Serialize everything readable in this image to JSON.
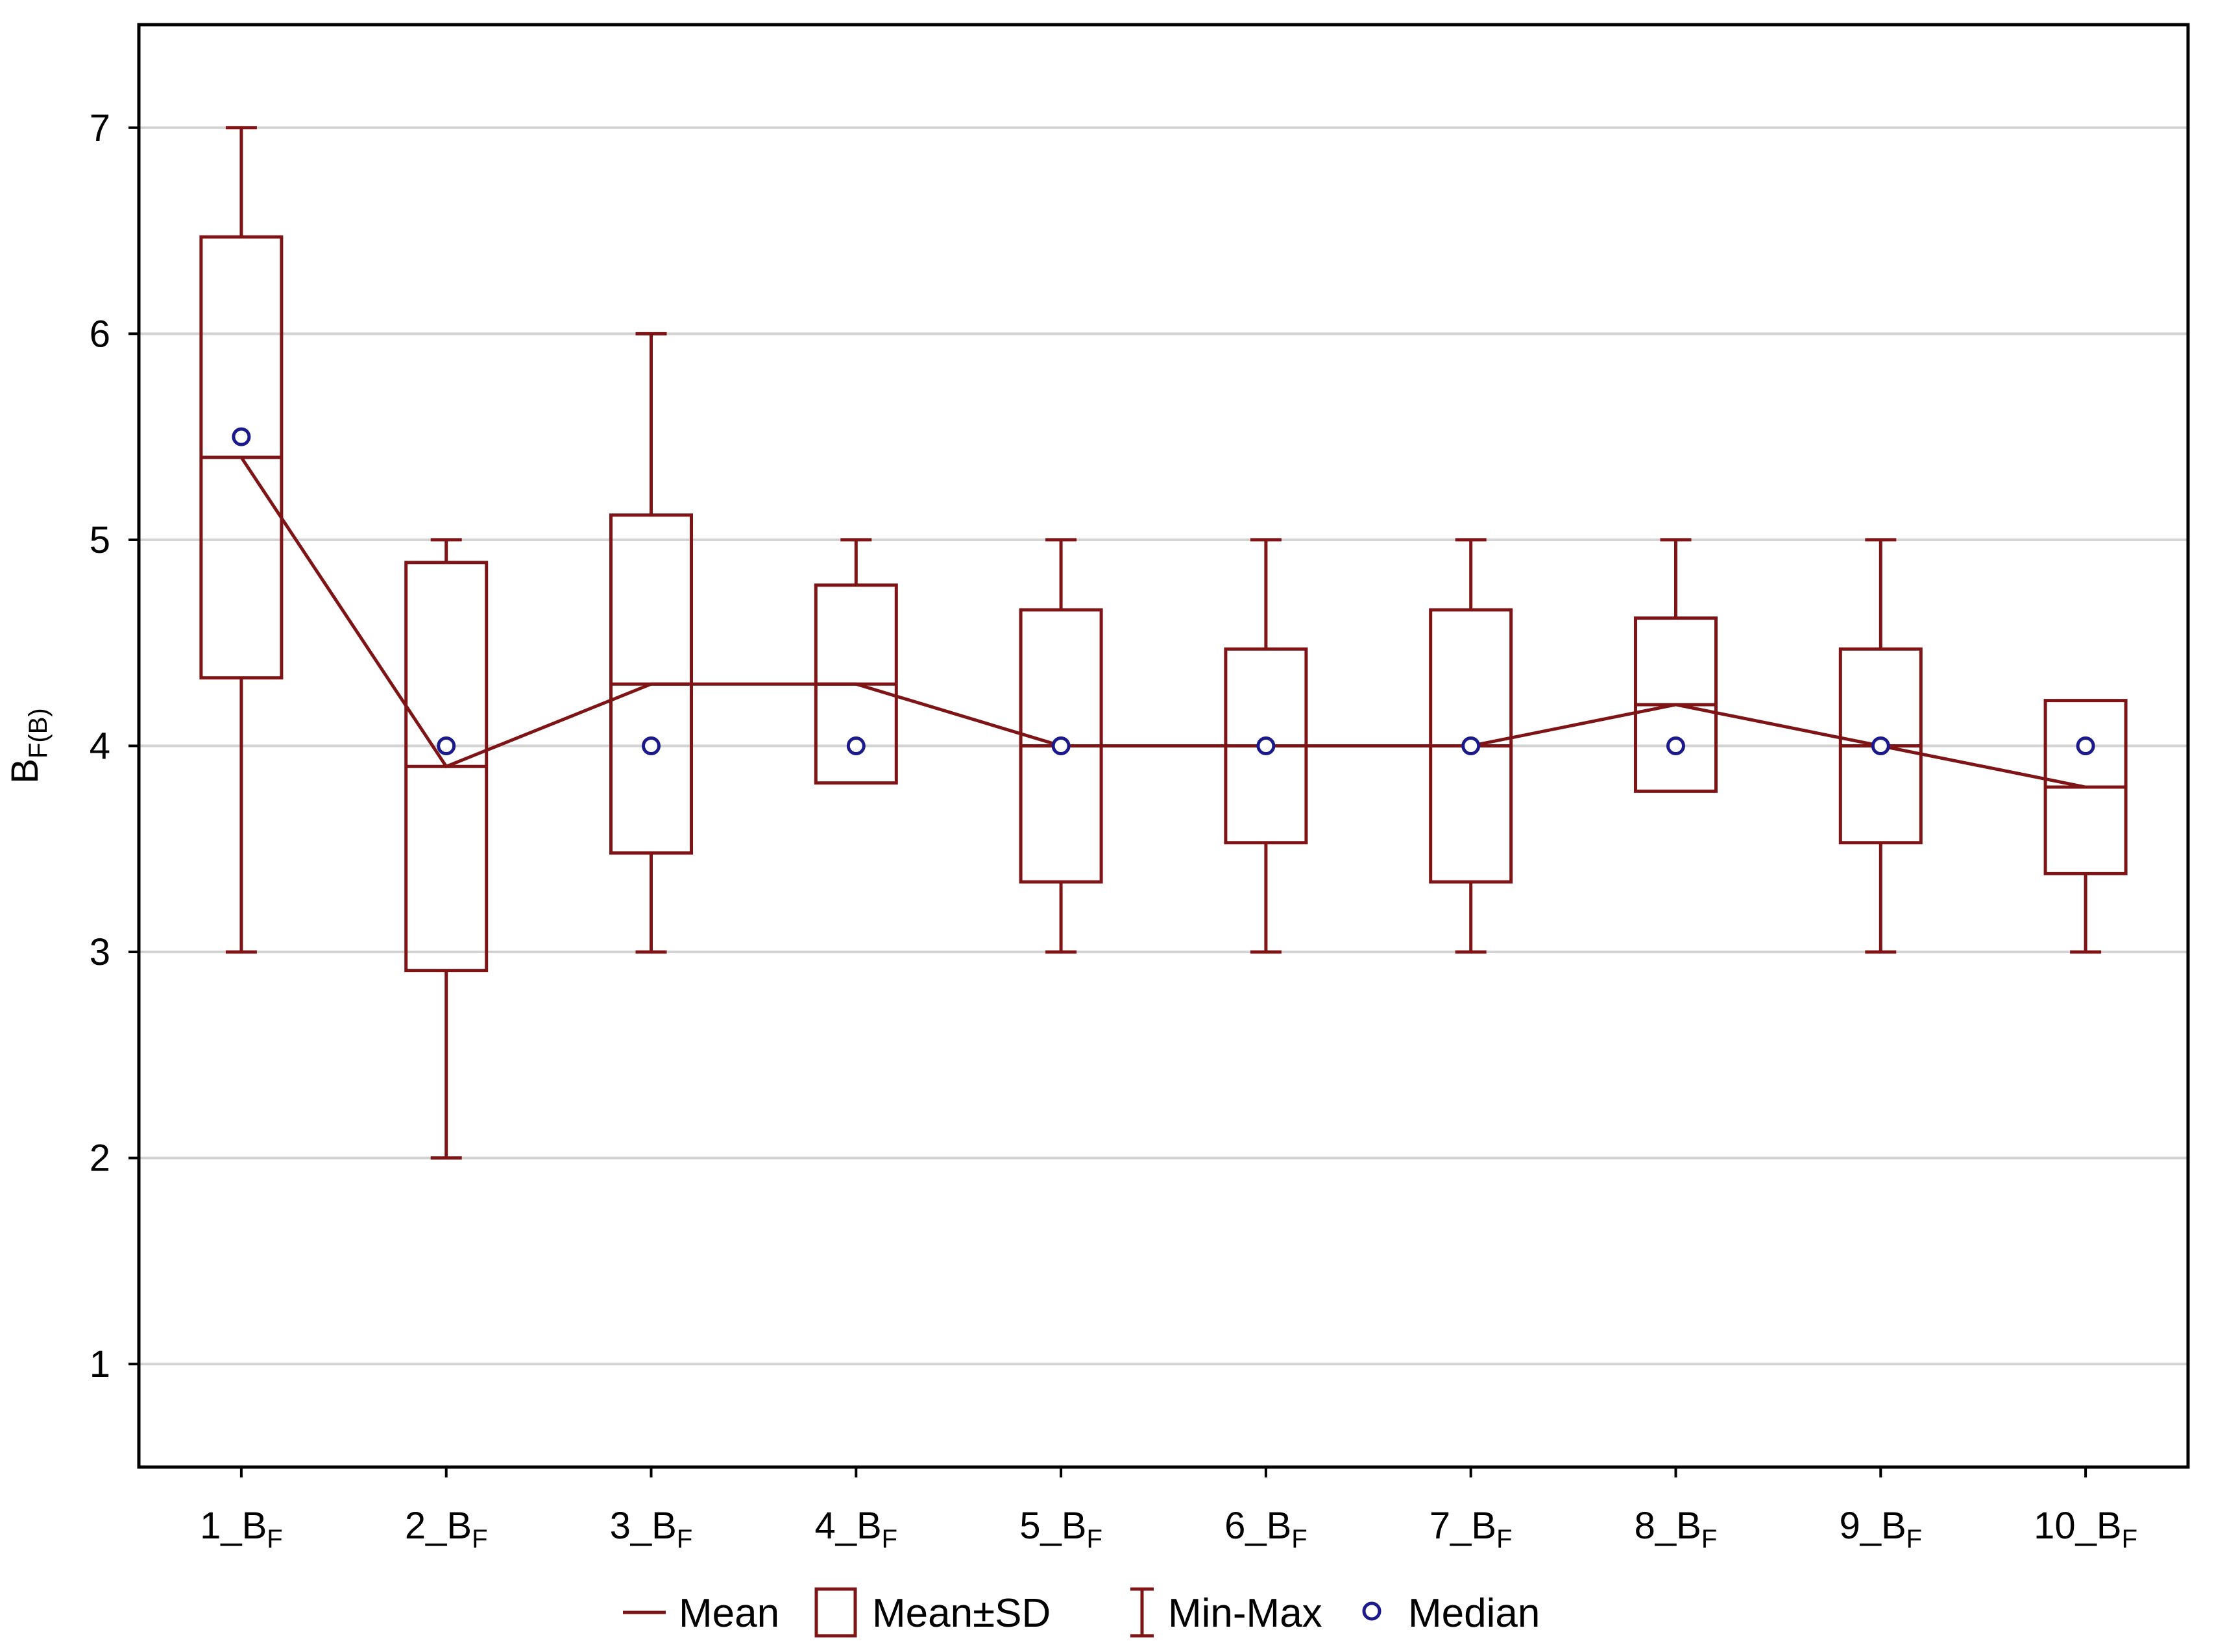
{
  "chart_data": {
    "type": "box",
    "title": "",
    "xlabel": "",
    "ylabel": {
      "main": "B",
      "sub": "F(B)"
    },
    "ylim": [
      0.5,
      7.5
    ],
    "yticks": [
      1,
      2,
      3,
      4,
      5,
      6,
      7
    ],
    "grid": true,
    "categories": [
      {
        "prefix": "1_B",
        "sub": "F"
      },
      {
        "prefix": "2_B",
        "sub": "F"
      },
      {
        "prefix": "3_B",
        "sub": "F"
      },
      {
        "prefix": "4_B",
        "sub": "F"
      },
      {
        "prefix": "5_B",
        "sub": "F"
      },
      {
        "prefix": "6_B",
        "sub": "F"
      },
      {
        "prefix": "7_B",
        "sub": "F"
      },
      {
        "prefix": "8_B",
        "sub": "F"
      },
      {
        "prefix": "9_B",
        "sub": "F"
      },
      {
        "prefix": "10_B",
        "sub": "F"
      }
    ],
    "series": [
      {
        "name": "Mean",
        "values": [
          5.4,
          3.9,
          4.3,
          4.3,
          4.0,
          4.0,
          4.0,
          4.2,
          4.0,
          3.8
        ]
      },
      {
        "name": "Mean-SD",
        "values": [
          4.33,
          2.91,
          3.48,
          3.82,
          3.34,
          3.53,
          3.34,
          3.78,
          3.53,
          3.38
        ]
      },
      {
        "name": "Mean+SD",
        "values": [
          6.47,
          4.89,
          5.12,
          4.78,
          4.66,
          4.47,
          4.66,
          4.62,
          4.47,
          4.22
        ]
      },
      {
        "name": "Min",
        "values": [
          3,
          2,
          3,
          3.82,
          3,
          3,
          3,
          3.78,
          3,
          3
        ]
      },
      {
        "name": "Max",
        "values": [
          7,
          5,
          6,
          5,
          5,
          5,
          5,
          5,
          5,
          4.22
        ]
      },
      {
        "name": "Median",
        "values": [
          5.5,
          4,
          4,
          4,
          4,
          4,
          4,
          4,
          4,
          4
        ]
      }
    ],
    "legend": {
      "position": "bottom",
      "items": [
        {
          "label": "Mean",
          "symbol": "line"
        },
        {
          "label": "Mean±SD",
          "symbol": "box"
        },
        {
          "label": "Min-Max",
          "symbol": "whisker"
        },
        {
          "label": "Median",
          "symbol": "circle"
        }
      ]
    },
    "colors": {
      "box": "#7f1416",
      "median": "#1a1a8c",
      "grid": "#d3d3d3",
      "frame": "#000000"
    }
  }
}
